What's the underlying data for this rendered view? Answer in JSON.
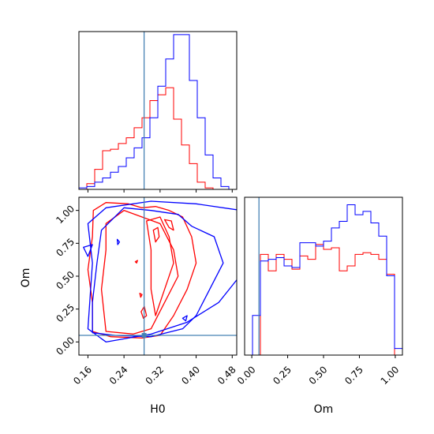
{
  "chart_data": {
    "type": "corner",
    "parameters": [
      "H0",
      "Om"
    ],
    "truth": {
      "H0": 0.2846,
      "Om": 0.05
    },
    "colors": {
      "series_a": "#0000ff",
      "series_b": "#ff0000",
      "truth": "#4682b4"
    },
    "h0_hist": {
      "xlim": [
        0.14,
        0.49
      ],
      "ticks": [
        0.16,
        0.24,
        0.32,
        0.4,
        0.48
      ],
      "bin_edges": [
        0.14,
        0.1575,
        0.175,
        0.1925,
        0.21,
        0.2275,
        0.245,
        0.2625,
        0.28,
        0.2975,
        0.315,
        0.3325,
        0.35,
        0.3675,
        0.385,
        0.4025,
        0.42,
        0.4375,
        0.455,
        0.4725,
        0.49
      ],
      "series_a_counts": [
        1,
        2,
        5,
        8,
        12,
        16,
        22,
        29,
        36,
        50,
        72,
        91,
        108,
        108,
        76,
        50,
        24,
        8,
        2,
        0
      ],
      "series_b_counts": [
        0,
        4,
        14,
        27,
        28,
        32,
        36,
        43,
        50,
        62,
        66,
        71,
        49,
        31,
        18,
        5,
        1,
        0,
        0,
        0
      ]
    },
    "om_hist": {
      "xlim": [
        -0.05,
        1.05
      ],
      "ticks": [
        0.0,
        0.25,
        0.5,
        0.75,
        1.0
      ],
      "bin_edges": [
        -0.05,
        0.005,
        0.06,
        0.115,
        0.17,
        0.225,
        0.28,
        0.335,
        0.39,
        0.445,
        0.5,
        0.555,
        0.61,
        0.665,
        0.72,
        0.775,
        0.83,
        0.885,
        0.94,
        0.995,
        1.05
      ],
      "series_a_counts": [
        0,
        24,
        57,
        58,
        59,
        54,
        53,
        68,
        68,
        66,
        69,
        77,
        81,
        91,
        85,
        87,
        80,
        72,
        48,
        4
      ],
      "series_b_counts": [
        0,
        0,
        61,
        51,
        61,
        58,
        52,
        60,
        58,
        67,
        64,
        65,
        51,
        54,
        61,
        62,
        61,
        58,
        49,
        0
      ]
    },
    "joint": {
      "xlabel": "H0",
      "ylabel": "Om",
      "xlim": [
        0.14,
        0.49
      ],
      "ylim": [
        -0.1,
        1.1
      ],
      "xticks": [
        0.16,
        0.24,
        0.32,
        0.4,
        0.48
      ],
      "yticks": [
        0.0,
        0.25,
        0.5,
        0.75,
        1.0
      ],
      "series_a_contours": [
        [
          [
            0.2,
            1.02
          ],
          [
            0.3,
            1.07
          ],
          [
            0.4,
            1.05
          ],
          [
            0.5,
            1.0
          ],
          [
            0.52,
            0.6
          ],
          [
            0.45,
            0.3
          ],
          [
            0.38,
            0.15
          ],
          [
            0.3,
            0.06
          ],
          [
            0.2,
            0.0
          ],
          [
            0.16,
            0.1
          ],
          [
            0.17,
            0.6
          ],
          [
            0.16,
            0.9
          ]
        ],
        [
          [
            0.19,
            0.85
          ],
          [
            0.24,
            1.02
          ],
          [
            0.3,
            1.0
          ],
          [
            0.36,
            0.97
          ],
          [
            0.39,
            0.88
          ],
          [
            0.44,
            0.8
          ],
          [
            0.46,
            0.6
          ],
          [
            0.43,
            0.4
          ],
          [
            0.4,
            0.2
          ],
          [
            0.37,
            0.1
          ],
          [
            0.3,
            0.04
          ],
          [
            0.22,
            0.05
          ],
          [
            0.17,
            0.07
          ],
          [
            0.17,
            0.3
          ],
          [
            0.18,
            0.6
          ]
        ],
        [
          [
            0.15,
            0.72
          ],
          [
            0.17,
            0.74
          ],
          [
            0.16,
            0.65
          ]
        ],
        [
          [
            0.225,
            0.78
          ],
          [
            0.23,
            0.76
          ],
          [
            0.226,
            0.74
          ]
        ],
        [
          [
            0.37,
            0.18
          ],
          [
            0.38,
            0.2
          ],
          [
            0.377,
            0.16
          ]
        ]
      ],
      "series_b_contours": [
        [
          [
            0.172,
            1.0
          ],
          [
            0.2,
            1.06
          ],
          [
            0.25,
            1.05
          ],
          [
            0.28,
            1.02
          ],
          [
            0.31,
            1.03
          ],
          [
            0.34,
            1.0
          ],
          [
            0.37,
            0.95
          ],
          [
            0.39,
            0.8
          ],
          [
            0.4,
            0.6
          ],
          [
            0.38,
            0.4
          ],
          [
            0.35,
            0.2
          ],
          [
            0.32,
            0.05
          ],
          [
            0.28,
            0.03
          ],
          [
            0.21,
            0.04
          ],
          [
            0.17,
            0.08
          ],
          [
            0.17,
            0.3
          ],
          [
            0.16,
            0.55
          ],
          [
            0.17,
            0.8
          ]
        ],
        [
          [
            0.2,
            0.9
          ],
          [
            0.24,
            1.0
          ],
          [
            0.28,
            0.95
          ],
          [
            0.32,
            0.9
          ],
          [
            0.35,
            0.7
          ],
          [
            0.36,
            0.5
          ],
          [
            0.33,
            0.3
          ],
          [
            0.3,
            0.1
          ],
          [
            0.26,
            0.06
          ],
          [
            0.2,
            0.08
          ],
          [
            0.19,
            0.4
          ],
          [
            0.2,
            0.7
          ]
        ],
        [
          [
            0.29,
            0.92
          ],
          [
            0.32,
            0.95
          ],
          [
            0.34,
            0.8
          ],
          [
            0.35,
            0.6
          ],
          [
            0.33,
            0.4
          ],
          [
            0.31,
            0.2
          ],
          [
            0.3,
            0.4
          ],
          [
            0.3,
            0.7
          ]
        ],
        [
          [
            0.305,
            0.85
          ],
          [
            0.315,
            0.87
          ],
          [
            0.318,
            0.8
          ],
          [
            0.31,
            0.76
          ]
        ],
        [
          [
            0.33,
            0.93
          ],
          [
            0.345,
            0.92
          ],
          [
            0.35,
            0.85
          ],
          [
            0.34,
            0.87
          ]
        ],
        [
          [
            0.265,
            0.61
          ],
          [
            0.27,
            0.62
          ],
          [
            0.268,
            0.6
          ]
        ],
        [
          [
            0.278,
            0.23
          ],
          [
            0.285,
            0.27
          ],
          [
            0.29,
            0.2
          ],
          [
            0.283,
            0.18
          ]
        ],
        [
          [
            0.275,
            0.37
          ],
          [
            0.28,
            0.36
          ],
          [
            0.277,
            0.34
          ]
        ]
      ]
    }
  }
}
